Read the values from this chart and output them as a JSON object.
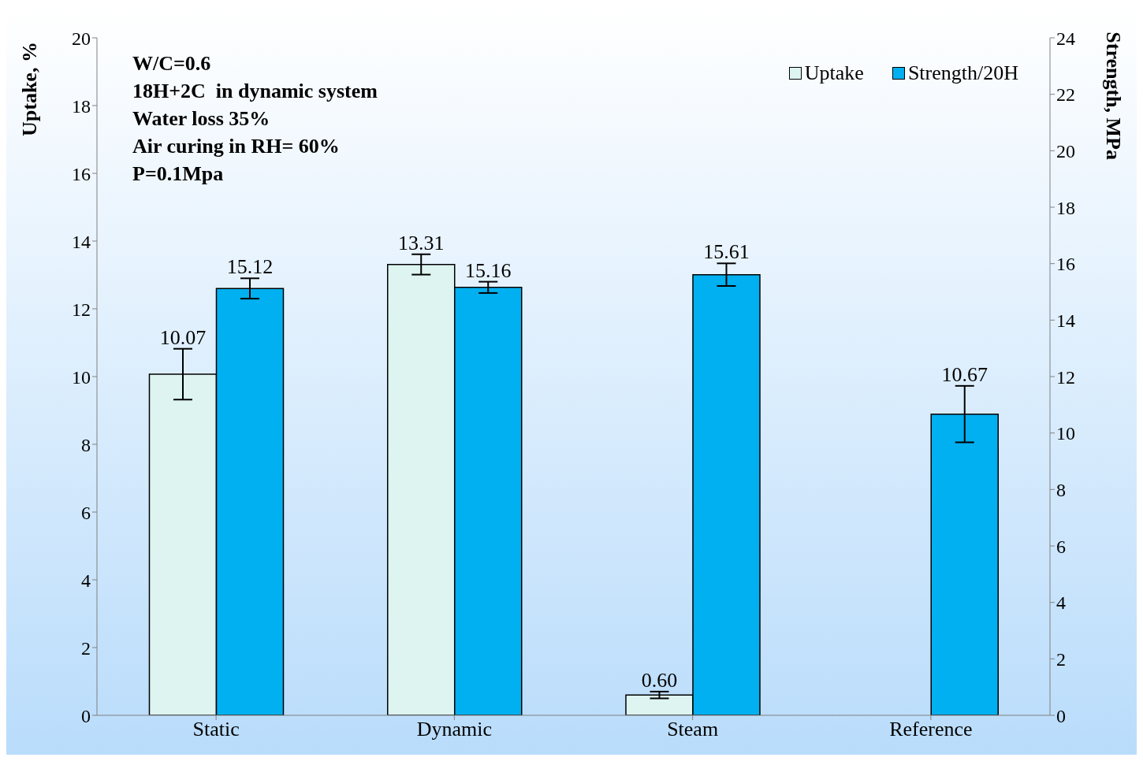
{
  "chart_data": {
    "type": "bar",
    "ylabel": "Uptake, %",
    "y2label": "Strength, MPa",
    "categories": [
      "Static",
      "Dynamic",
      "Steam",
      "Reference"
    ],
    "series": [
      {
        "name": "Uptake",
        "color": "#ddf4f0",
        "values": [
          10.07,
          13.31,
          0.6,
          null
        ],
        "errors": [
          0.75,
          0.3,
          0.1,
          null
        ],
        "value_labels": [
          "10.07",
          "13.31",
          "0.60",
          null
        ]
      },
      {
        "name": "Strength/20H",
        "color": "#00b0f0",
        "axis": "y2",
        "values": [
          15.12,
          15.16,
          15.61,
          10.67
        ],
        "errors": [
          0.36,
          0.2,
          0.4,
          1.0
        ],
        "value_labels": [
          "15.12",
          "15.16",
          "15.61",
          "10.67"
        ]
      }
    ],
    "ylim": [
      0,
      20
    ],
    "yticks": [
      0,
      2,
      4,
      6,
      8,
      10,
      12,
      14,
      16,
      18,
      20
    ],
    "y2lim": [
      0,
      24
    ],
    "y2ticks": [
      0,
      2,
      4,
      6,
      8,
      10,
      12,
      14,
      16,
      18,
      20,
      22,
      24
    ],
    "annotations": [
      "W/C=0.6",
      "18H+2C  in dynamic system",
      "Water loss 35%",
      "Air curing in RH= 60%",
      "P=0.1Mpa"
    ],
    "legend": "top right",
    "grid": false
  }
}
